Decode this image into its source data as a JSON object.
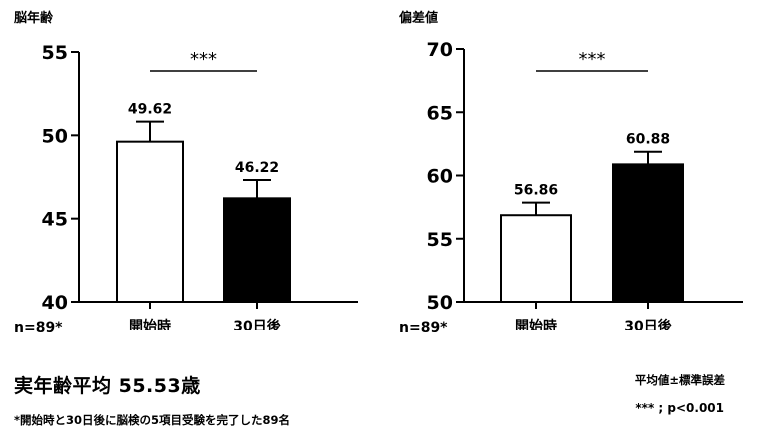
{
  "chart_data": [
    {
      "type": "bar",
      "title": "脳年齢",
      "categories": [
        "開始時",
        "30日後"
      ],
      "values": [
        49.62,
        46.22
      ],
      "value_labels": [
        "49.62",
        "46.22"
      ],
      "error": [
        1.2,
        1.1
      ],
      "bar_colors": [
        "#ffffff",
        "#000000"
      ],
      "ylim": [
        40,
        55
      ],
      "yticks": [
        40,
        45,
        50,
        55
      ],
      "significance": "***",
      "n_label": "n=89*"
    },
    {
      "type": "bar",
      "title": "偏差値",
      "categories": [
        "開始時",
        "30日後"
      ],
      "values": [
        56.86,
        60.88
      ],
      "value_labels": [
        "56.86",
        "60.88"
      ],
      "error": [
        1.0,
        1.0
      ],
      "bar_colors": [
        "#ffffff",
        "#000000"
      ],
      "ylim": [
        50,
        70
      ],
      "yticks": [
        50,
        55,
        60,
        65,
        70
      ],
      "significance": "***",
      "n_label": "n=89*"
    }
  ],
  "footer": {
    "mean_age": "実年齢平均 55.53歳",
    "note": "*開始時と30日後に脳検の5項目受験を完了した89名",
    "legend_se": "平均値±標準誤差",
    "legend_p": "*** ; p<0.001"
  }
}
